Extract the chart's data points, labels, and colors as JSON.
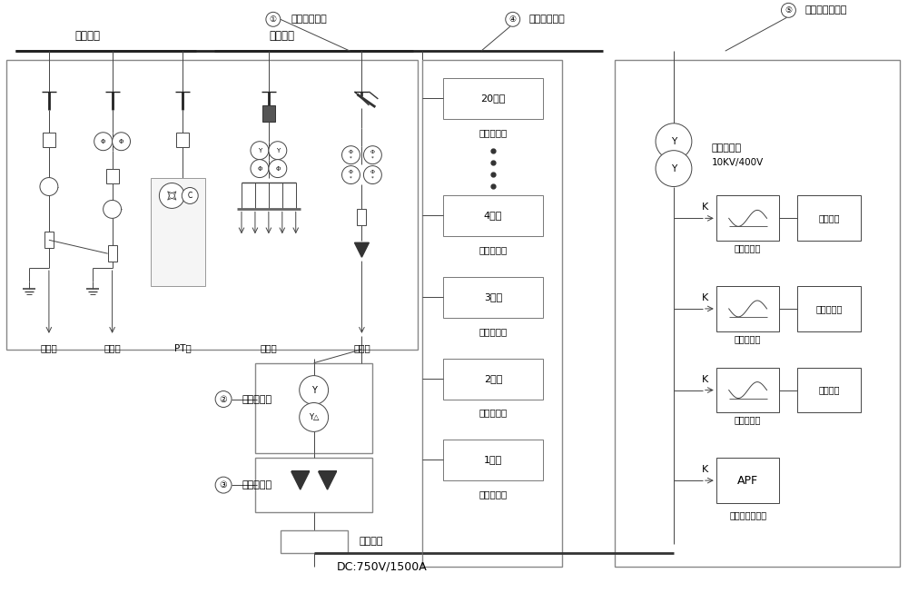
{
  "bg_color": "#ffffff",
  "line_color": "#444444",
  "labels": {
    "primary_bus": "一次母线",
    "secondary_bus": "二次母线",
    "circ1_text": "①",
    "label1": "高压保护系统",
    "circ2_text": "②",
    "label2": "整流变压器",
    "circ3_text": "③",
    "label3": "高压整流排",
    "circ4_text": "④",
    "label4": "智能充电桩群",
    "circ5_text": "⑤",
    "label5": "微电网供电系统",
    "jinxian": "进线柜",
    "jiliang": "计量柜",
    "pt": "PT柜",
    "suoyong": "所用变",
    "chuxian": "出线柜",
    "dc_bus": "直流母线",
    "dc_spec": "DC:750V/1500A",
    "transformer": "升压变压器",
    "transformer2": "10KV/400V",
    "pile20": "20号桩",
    "pile4": "4号桩",
    "pile3": "3号桩",
    "pile2": "2号桩",
    "pile1": "1号桩",
    "znczpile": "智能充电桩",
    "pv_inv": "光伏逆变器",
    "pv_panel": "光伏组件",
    "wind_inv": "风机逆变器",
    "wind_gen": "风力发电机",
    "storage_inv": "储能逆变器",
    "storage_bat": "储能电池",
    "apf": "APF",
    "apf_full": "有源电力滤波器"
  }
}
